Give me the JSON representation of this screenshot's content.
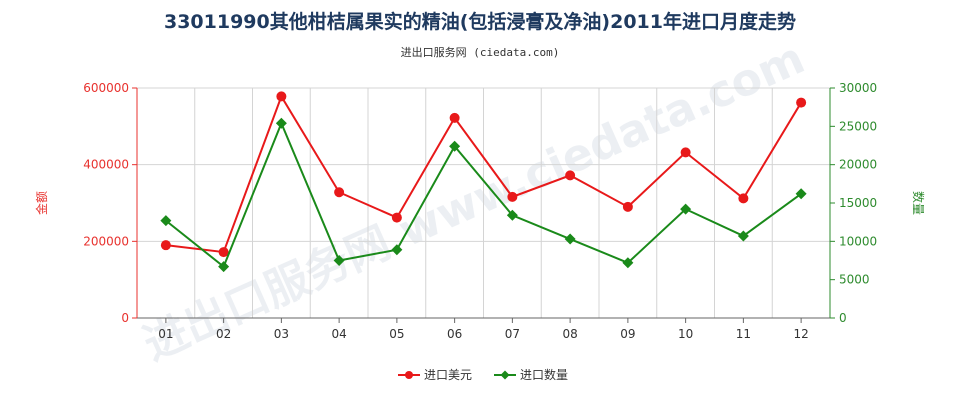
{
  "chart_data": {
    "type": "line",
    "title": "33011990其他柑桔属果实的精油(包括浸膏及净油)2011年进口月度走势",
    "subtitle": "进出口服务网 (ciedata.com)",
    "watermark": "进出口服务网 www.ciedata.com",
    "categories": [
      "01",
      "02",
      "03",
      "04",
      "05",
      "06",
      "07",
      "08",
      "09",
      "10",
      "11",
      "12"
    ],
    "y_left": {
      "label": "金额",
      "min": 0,
      "max": 600000,
      "ticks": [
        0,
        200000,
        400000,
        600000
      ],
      "tick_labels": [
        "0",
        "200000",
        "400000",
        "600000"
      ],
      "color": "#e8322e"
    },
    "y_right": {
      "label": "数量",
      "min": 0,
      "max": 30000,
      "ticks": [
        0,
        5000,
        10000,
        15000,
        20000,
        25000,
        30000
      ],
      "tick_labels": [
        "0",
        "5000",
        "10000",
        "15000",
        "20000",
        "25000",
        "30000"
      ],
      "color": "#2e8b2e"
    },
    "series": [
      {
        "name": "进口美元",
        "axis": "left",
        "color": "#e8191a",
        "marker": "circle",
        "values": [
          190000,
          172000,
          578000,
          328000,
          262000,
          522000,
          316000,
          372000,
          290000,
          432000,
          312000,
          562000
        ]
      },
      {
        "name": "进口数量",
        "axis": "right",
        "color": "#1a8a1a",
        "marker": "diamond",
        "values": [
          12700,
          6700,
          25400,
          7500,
          8900,
          22400,
          13400,
          10300,
          7200,
          14200,
          10700,
          16200
        ]
      }
    ],
    "grid": true,
    "legend_position": "bottom-center"
  }
}
